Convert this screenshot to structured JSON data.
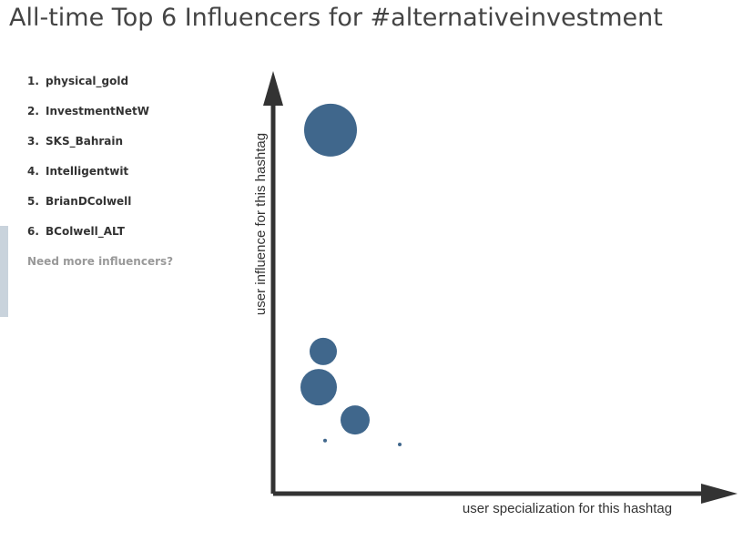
{
  "header": {
    "title": "All-time Top 6 Influencers for #alternativeinvestment"
  },
  "influencers": [
    {
      "rank": "1.",
      "name": "physical_gold"
    },
    {
      "rank": "2.",
      "name": "InvestmentNetW"
    },
    {
      "rank": "3.",
      "name": "SKS_Bahrain"
    },
    {
      "rank": "4.",
      "name": "Intelligentwit"
    },
    {
      "rank": "5.",
      "name": "BrianDColwell"
    },
    {
      "rank": "6.",
      "name": "BColwell_ALT"
    }
  ],
  "more_link": "Need more influencers?",
  "chart_data": {
    "type": "bubble",
    "xlabel": "user specialization for this hashtag",
    "ylabel": "user influence for this hashtag",
    "x": [
      12.6,
      11,
      10,
      18,
      11.4,
      27.8
    ],
    "y": [
      86.4,
      33.8,
      25.3,
      17.5,
      12.6,
      11.7
    ],
    "sizes": [
      841,
      225,
      400,
      256,
      4,
      4
    ],
    "color": "#40678c",
    "xlim": [
      0,
      100
    ],
    "ylim": [
      0,
      100
    ]
  }
}
